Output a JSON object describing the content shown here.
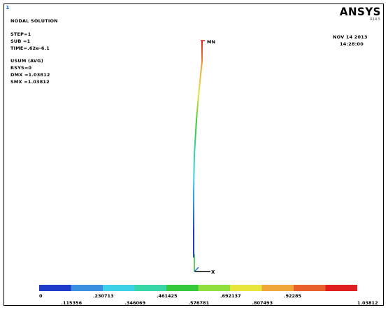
{
  "window_number": "1",
  "logo": "ANSYS",
  "release": "R14.5",
  "info": {
    "title": "NODAL SOLUTION",
    "lines": [
      "STEP=1",
      "SUB =1",
      "TIME=.62e-6.1",
      "USUM       (AVG)",
      "RSYS=0",
      "DMX =1.03812",
      "SMX =1.03812"
    ]
  },
  "datetime": {
    "date": "NOV 14 2013",
    "time": "14:28:00"
  },
  "node_label": "MN",
  "triad_label": "X",
  "legend": {
    "colors": [
      "#1e3cc8",
      "#3a8fe0",
      "#3ed0e6",
      "#36d6a6",
      "#33c93a",
      "#8fe03c",
      "#e8e63c",
      "#f0a53a",
      "#e8602c",
      "#e01e1e"
    ],
    "upper_labels": [
      "0",
      ".230713",
      ".461425",
      ".692137",
      ".92285"
    ],
    "lower_labels": [
      ".115356",
      ".346069",
      ".576781",
      ".807493",
      "1.03812"
    ]
  }
}
